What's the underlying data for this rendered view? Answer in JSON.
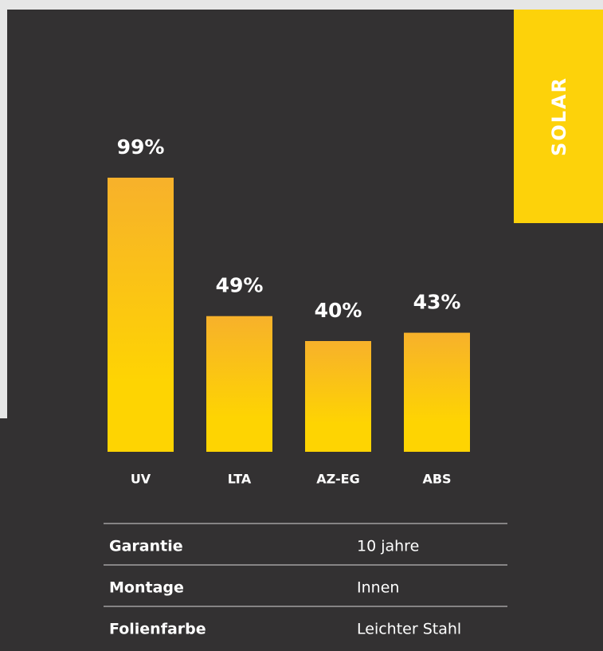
{
  "chart_data": {
    "type": "bar",
    "categories": [
      "UV",
      "LTA",
      "AZ-EG",
      "ABS"
    ],
    "values": [
      99,
      49,
      40,
      43
    ],
    "value_labels": [
      "99%",
      "49%",
      "40%",
      "43%"
    ],
    "color_top": "#f7b12b",
    "color_bottom": "#fed402"
  },
  "badge": {
    "label": "SOLAR",
    "color": "#fdd20a"
  },
  "table": {
    "rows": [
      [
        "Garantie",
        "10 jahre"
      ],
      [
        "Montage",
        "Innen"
      ],
      [
        "Folienfarbe",
        "Leichter Stahl"
      ]
    ]
  }
}
